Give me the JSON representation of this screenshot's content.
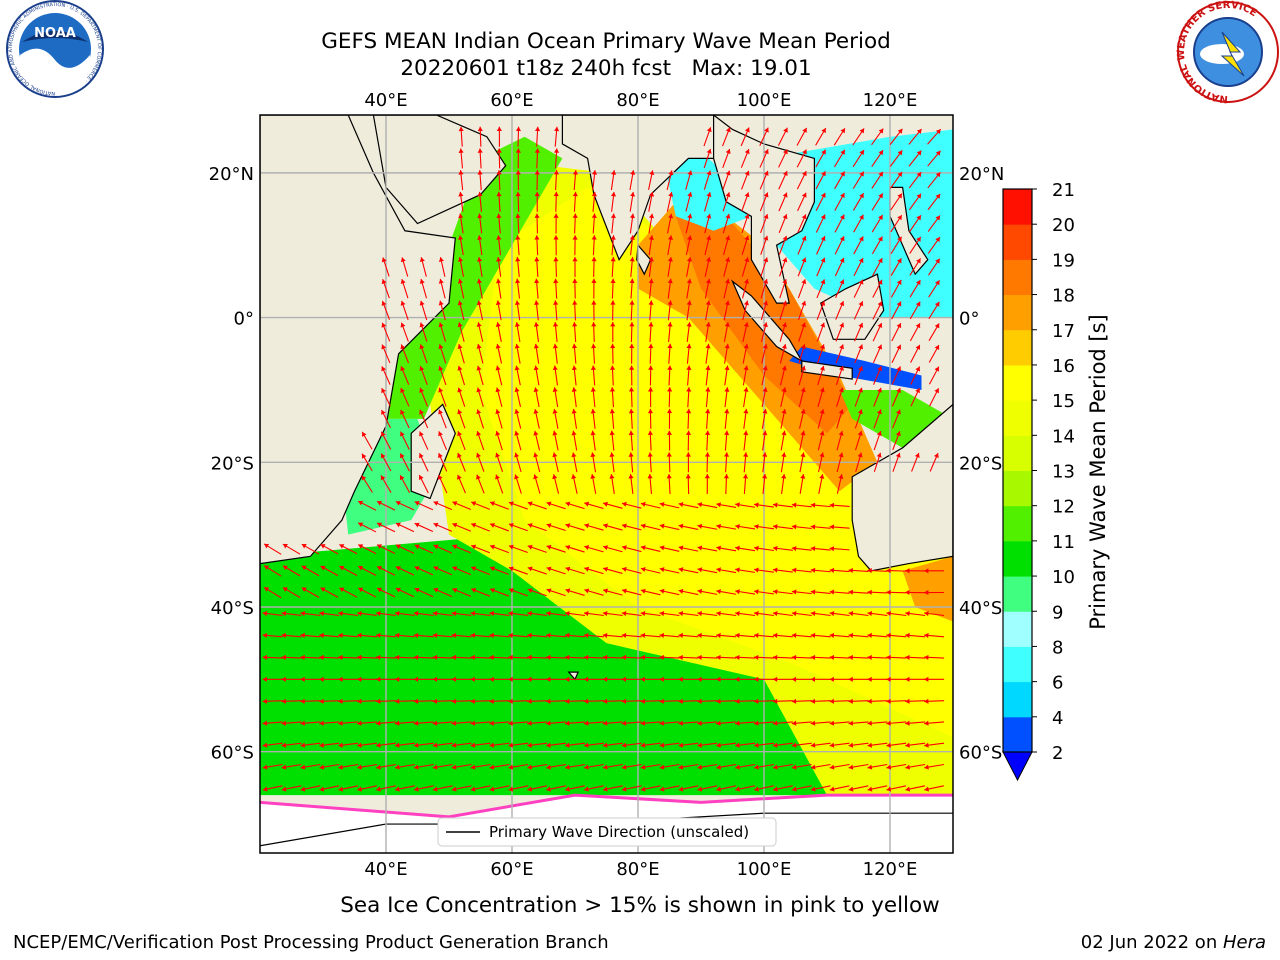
{
  "title": {
    "line1": "GEFS MEAN Indian Ocean Primary Wave Mean Period",
    "line2": "20220601 t18z 240h fcst   Max: 19.01"
  },
  "map": {
    "lon_range": [
      20,
      130
    ],
    "lat_range": [
      -74,
      28
    ],
    "lon_ticks": [
      40,
      60,
      80,
      100,
      120
    ],
    "lon_tick_labels": [
      "40°E",
      "60°E",
      "80°E",
      "100°E",
      "120°E"
    ],
    "lat_ticks": [
      20,
      0,
      -20,
      -40,
      -60
    ],
    "lat_tick_labels": [
      "20°N",
      "0°",
      "20°S",
      "40°S",
      "60°S"
    ],
    "grid": true,
    "land_color": "#efecdc",
    "ice_color": "#ffffff",
    "arrow_color": "#ff0000"
  },
  "colorbar": {
    "label": "Primary Wave Mean Period [s]",
    "ticks": [
      2,
      4,
      6,
      8,
      9,
      10,
      11,
      12,
      13,
      14,
      15,
      16,
      17,
      18,
      19,
      20,
      21
    ],
    "colors": [
      "#0050ff",
      "#00d8ff",
      "#40ffff",
      "#a0ffff",
      "#40ff80",
      "#00e000",
      "#50f000",
      "#a8f800",
      "#d8ff00",
      "#f0ff00",
      "#ffff00",
      "#ffcc00",
      "#ffa000",
      "#ff7800",
      "#ff4800",
      "#ff1000"
    ],
    "under_color": "#0000ff"
  },
  "legend": {
    "label": "Primary Wave Direction (unscaled)"
  },
  "caption": "Sea Ice Concentration > 15% is shown in pink to yellow",
  "footer": {
    "left": "NCEP/EMC/Verification Post Processing Product Generation Branch",
    "right_date": "02 Jun 2022 on ",
    "right_machine": "Hera"
  },
  "logos": {
    "noaa_text": "NOAA",
    "noaa_ring_text": "NATIONAL OCEANIC AND ATMOSPHERIC ADMINISTRATION · U.S. DEPARTMENT OF COMMERCE ·",
    "nws_ring_text": "NATIONAL WEATHER SERVICE"
  }
}
